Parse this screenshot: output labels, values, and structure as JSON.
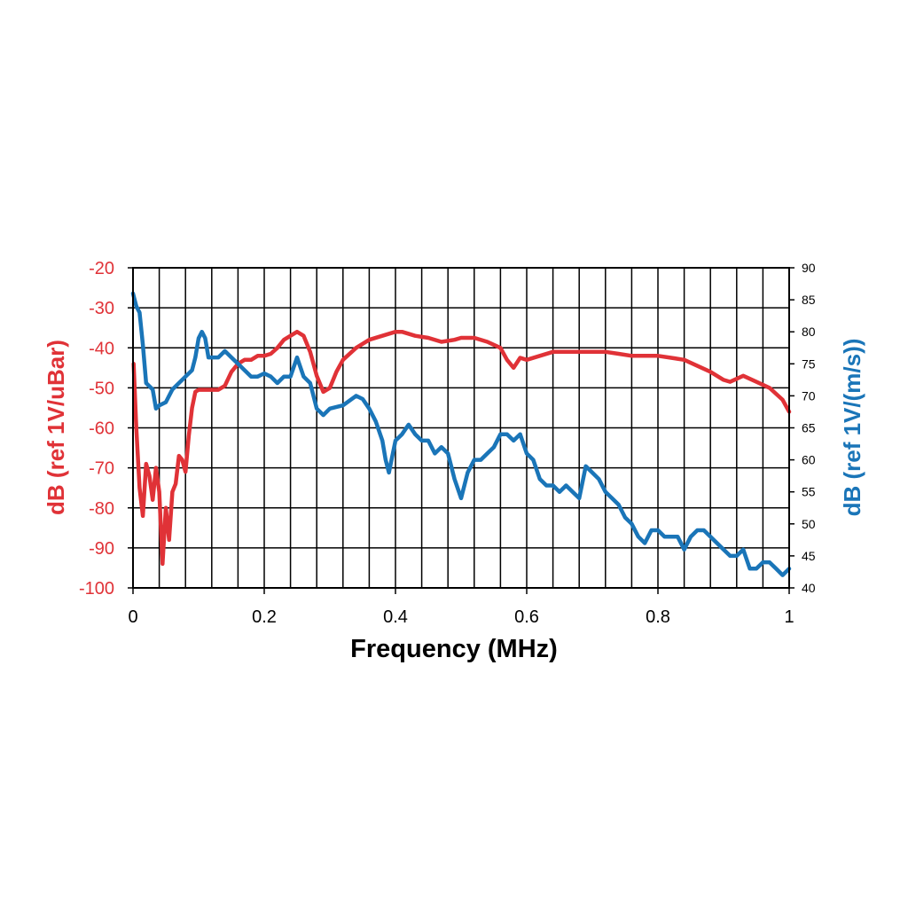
{
  "chart_data": {
    "type": "line",
    "title": "",
    "xlabel": "Frequency (MHz)",
    "xlim": [
      0,
      1
    ],
    "x_ticks": [
      0,
      0.2,
      0.4,
      0.6,
      0.8,
      1
    ],
    "x_tick_labels": [
      "0",
      "0.2",
      "0.4",
      "0.6",
      "0.8",
      "1"
    ],
    "x_minor_step": 0.04,
    "grid": true,
    "y_left": {
      "label": "dB (ref 1V/uBar)",
      "lim": [
        -100,
        -20
      ],
      "ticks": [
        -20,
        -30,
        -40,
        -50,
        -60,
        -70,
        -80,
        -90,
        -100
      ],
      "tick_labels": [
        "-20",
        "-30",
        "-40",
        "-50",
        "-60",
        "-70",
        "-80",
        "-90",
        "-100"
      ],
      "color": "#e03237"
    },
    "y_right": {
      "label": "dB (ref 1V/(m/s))",
      "lim": [
        40,
        90
      ],
      "ticks": [
        90,
        85,
        80,
        75,
        70,
        65,
        60,
        55,
        50,
        45,
        40
      ],
      "tick_labels": [
        "90",
        "85",
        "80",
        "75",
        "70",
        "65",
        "60",
        "55",
        "50",
        "45",
        "40"
      ],
      "color": "#1a75b8"
    },
    "series": [
      {
        "name": "dB (ref 1V/uBar)",
        "axis": "left",
        "color": "#e03237",
        "x": [
          0.001,
          0.005,
          0.01,
          0.015,
          0.02,
          0.025,
          0.03,
          0.035,
          0.04,
          0.045,
          0.05,
          0.055,
          0.06,
          0.065,
          0.07,
          0.075,
          0.08,
          0.085,
          0.09,
          0.095,
          0.1,
          0.105,
          0.11,
          0.12,
          0.13,
          0.14,
          0.15,
          0.16,
          0.17,
          0.18,
          0.19,
          0.2,
          0.21,
          0.22,
          0.23,
          0.24,
          0.25,
          0.26,
          0.27,
          0.28,
          0.29,
          0.3,
          0.31,
          0.32,
          0.34,
          0.36,
          0.38,
          0.4,
          0.41,
          0.43,
          0.45,
          0.47,
          0.49,
          0.5,
          0.52,
          0.54,
          0.56,
          0.57,
          0.58,
          0.59,
          0.6,
          0.62,
          0.64,
          0.66,
          0.68,
          0.7,
          0.72,
          0.74,
          0.76,
          0.78,
          0.8,
          0.82,
          0.84,
          0.86,
          0.88,
          0.9,
          0.91,
          0.93,
          0.95,
          0.97,
          0.99,
          1.0
        ],
        "values": [
          -44,
          -60,
          -75,
          -82,
          -69,
          -72,
          -78,
          -70,
          -76,
          -94,
          -80,
          -88,
          -76,
          -74,
          -67,
          -68,
          -71,
          -62,
          -55,
          -51,
          -50.5,
          -50.5,
          -50.5,
          -50.5,
          -50.5,
          -49.5,
          -46,
          -44,
          -43,
          -43,
          -42,
          -42,
          -41.5,
          -40,
          -38,
          -37,
          -36,
          -37,
          -41,
          -47,
          -51,
          -50,
          -46,
          -43,
          -40,
          -38,
          -37,
          -36,
          -36,
          -37,
          -37.5,
          -38.5,
          -38,
          -37.5,
          -37.5,
          -38.5,
          -40,
          -43,
          -45,
          -42.5,
          -43,
          -42,
          -41,
          -41,
          -41,
          -41,
          -41,
          -41.5,
          -42,
          -42,
          -42,
          -42.5,
          -43,
          -44.5,
          -46,
          -48,
          -48.5,
          -47,
          -48.5,
          -50,
          -53,
          -56
        ]
      },
      {
        "name": "dB (ref 1V/(m/s))",
        "axis": "right",
        "color": "#1a75b8",
        "x": [
          0.0,
          0.005,
          0.01,
          0.015,
          0.02,
          0.03,
          0.035,
          0.04,
          0.05,
          0.06,
          0.07,
          0.08,
          0.09,
          0.095,
          0.1,
          0.105,
          0.11,
          0.115,
          0.12,
          0.13,
          0.14,
          0.15,
          0.16,
          0.17,
          0.18,
          0.19,
          0.2,
          0.21,
          0.22,
          0.23,
          0.24,
          0.25,
          0.26,
          0.27,
          0.28,
          0.29,
          0.3,
          0.32,
          0.34,
          0.35,
          0.36,
          0.37,
          0.38,
          0.385,
          0.39,
          0.4,
          0.41,
          0.42,
          0.43,
          0.44,
          0.45,
          0.46,
          0.47,
          0.48,
          0.49,
          0.5,
          0.51,
          0.52,
          0.53,
          0.54,
          0.55,
          0.56,
          0.57,
          0.58,
          0.59,
          0.6,
          0.61,
          0.62,
          0.63,
          0.64,
          0.65,
          0.66,
          0.67,
          0.68,
          0.69,
          0.7,
          0.71,
          0.72,
          0.73,
          0.74,
          0.75,
          0.76,
          0.77,
          0.78,
          0.79,
          0.8,
          0.81,
          0.82,
          0.83,
          0.84,
          0.85,
          0.86,
          0.87,
          0.88,
          0.89,
          0.9,
          0.91,
          0.92,
          0.93,
          0.94,
          0.95,
          0.96,
          0.97,
          0.98,
          0.99,
          1.0
        ],
        "values": [
          86,
          84,
          83,
          78,
          72,
          71,
          68,
          68.5,
          69,
          71,
          72,
          73,
          74,
          76,
          79,
          80,
          79,
          76,
          76,
          76,
          77,
          76,
          75,
          74,
          73,
          73,
          73.5,
          73,
          72,
          73,
          73,
          76,
          73,
          72,
          68,
          67,
          68,
          68.5,
          70,
          69.5,
          68,
          66,
          63,
          60,
          58,
          63,
          64,
          65.5,
          64,
          63,
          63,
          61,
          62,
          61,
          57,
          54,
          58,
          60,
          60,
          61,
          62,
          64,
          64,
          63,
          64,
          61,
          60,
          57,
          56,
          56,
          55,
          56,
          55,
          54,
          59,
          58,
          57,
          55,
          54,
          53,
          51,
          50,
          48,
          47,
          49,
          49,
          48,
          48,
          48,
          46,
          48,
          49,
          49,
          48,
          47,
          46,
          45,
          45,
          46,
          43,
          43,
          44,
          44,
          43,
          42,
          43
        ]
      }
    ]
  }
}
